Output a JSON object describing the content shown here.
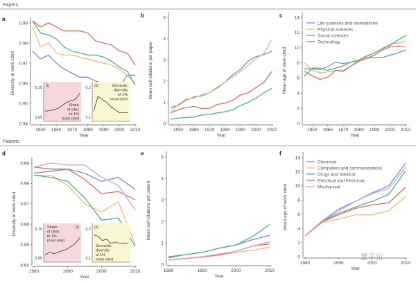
{
  "sections": {
    "papers": "Papers",
    "patents": "Patents"
  },
  "watermark": "量子位",
  "colors": {
    "blue": "#6f8fd8",
    "orange": "#f4b877",
    "green": "#4db486",
    "red": "#df6b5e",
    "purple": "#d39bd8",
    "pink_inset": "#f6d8dc",
    "yellow_inset": "#fbf6cf"
  },
  "chart_data": [
    {
      "id": "a",
      "type": "line",
      "panel_label": "a",
      "xlabel": "Year",
      "ylabel": "Diversity of work cited",
      "xticks": [
        "1950",
        "1960",
        "1970",
        "1980",
        "1990",
        "2000",
        "2010"
      ],
      "yticks": [
        "0.94",
        "0.95",
        "0.96",
        "0.97",
        "0.98",
        "0.99"
      ],
      "xlim": [
        1945,
        2010
      ],
      "ylim": [
        0.94,
        0.99
      ],
      "x": [
        1945,
        1950,
        1955,
        1960,
        1965,
        1970,
        1975,
        1980,
        1985,
        1990,
        1995,
        2000,
        2005,
        2010
      ],
      "series": [
        {
          "name": "Life sciences and biomedicine",
          "color": "#6f8fd8",
          "values": [
            0.976,
            0.972,
            0.974,
            0.97,
            0.967,
            0.965,
            0.963,
            0.963,
            0.961,
            0.96,
            0.958,
            0.958,
            0.964,
            0.964
          ]
        },
        {
          "name": "Physical sciences",
          "color": "#f4b877",
          "values": [
            0.988,
            0.978,
            0.98,
            0.975,
            0.974,
            0.974,
            0.973,
            0.972,
            0.971,
            0.97,
            0.969,
            0.967,
            0.964,
            0.96
          ]
        },
        {
          "name": "Social sciences",
          "color": "#4db486",
          "values": [
            0.991,
            0.985,
            0.984,
            0.982,
            0.978,
            0.976,
            0.975,
            0.974,
            0.974,
            0.973,
            0.971,
            0.968,
            0.966,
            0.959
          ]
        },
        {
          "name": "Technology",
          "color": "#df6b5e",
          "values": [
            0.991,
            0.988,
            0.99,
            0.988,
            0.986,
            0.986,
            0.986,
            0.985,
            0.981,
            0.98,
            0.979,
            0.976,
            0.975,
            0.969
          ]
        }
      ],
      "insets": [
        {
          "tag": "(i)",
          "label": [
            "Share",
            "of cites",
            "to 1%",
            "most cited"
          ],
          "yticks": [
            "0.15",
            "0.05"
          ],
          "ylim": [
            0.05,
            0.15
          ],
          "values": [
            0.07,
            0.072,
            0.075,
            0.08,
            0.09,
            0.1,
            0.105,
            0.11,
            0.13
          ]
        },
        {
          "tag": "(ii)",
          "label": [
            "Semantic",
            "diversity",
            "of 1%",
            "most cited"
          ],
          "yticks": [
            "0.2",
            "0.1"
          ],
          "ylim": [
            0.1,
            0.2
          ],
          "values": [
            0.12,
            0.17,
            0.16,
            0.15,
            0.135,
            0.125,
            0.115,
            0.115,
            0.116
          ]
        }
      ]
    },
    {
      "id": "b",
      "type": "line",
      "panel_label": "b",
      "xlabel": "Year",
      "ylabel": "Mean self-citations per paper",
      "xticks": [
        "1950",
        "1960",
        "1970",
        "1980",
        "1990",
        "2000",
        "2010"
      ],
      "yticks": [
        "0",
        "1",
        "2",
        "3",
        "4",
        "5"
      ],
      "xlim": [
        1945,
        2010
      ],
      "ylim": [
        0,
        5
      ],
      "x": [
        1945,
        1950,
        1955,
        1960,
        1965,
        1970,
        1975,
        1980,
        1985,
        1990,
        1995,
        2000,
        2005,
        2010
      ],
      "series": [
        {
          "name": "Life sciences and biomedicine",
          "color": "#6f8fd8",
          "values": [
            0.75,
            0.85,
            1.1,
            1.25,
            1.3,
            1.45,
            1.7,
            1.95,
            2.3,
            2.55,
            2.95,
            3.15,
            3.25,
            3.4
          ]
        },
        {
          "name": "Physical sciences",
          "color": "#f4b877",
          "values": [
            0.55,
            0.9,
            1.15,
            1.2,
            1.35,
            1.45,
            1.65,
            1.95,
            2.2,
            2.45,
            2.75,
            3.05,
            3.3,
            3.95
          ]
        },
        {
          "name": "Social sciences",
          "color": "#4db486",
          "values": [
            0.2,
            0.25,
            0.28,
            0.3,
            0.4,
            0.42,
            0.5,
            0.55,
            0.65,
            0.85,
            1.0,
            1.2,
            1.45,
            1.65
          ]
        },
        {
          "name": "Technology",
          "color": "#df6b5e",
          "values": [
            0.5,
            0.65,
            0.75,
            0.8,
            0.7,
            0.72,
            0.9,
            0.95,
            1.1,
            1.35,
            1.45,
            1.7,
            1.95,
            2.45
          ]
        }
      ]
    },
    {
      "id": "c",
      "type": "line",
      "panel_label": "c",
      "xlabel": "Year",
      "ylabel": "Mean age of work cited",
      "xticks": [
        "1950",
        "1960",
        "1970",
        "1980",
        "1990",
        "2000",
        "2010"
      ],
      "yticks": [
        "0",
        "2",
        "4",
        "6",
        "8",
        "10",
        "12",
        "14"
      ],
      "xlim": [
        1945,
        2010
      ],
      "ylim": [
        0,
        14
      ],
      "legend": "top-left",
      "x": [
        1945,
        1950,
        1955,
        1960,
        1965,
        1970,
        1975,
        1980,
        1985,
        1990,
        1995,
        2000,
        2005,
        2010
      ],
      "series": [
        {
          "name": "Life sciences and biomedicine",
          "color": "#6f8fd8",
          "values": [
            7.2,
            7.2,
            7.1,
            7.5,
            8.1,
            7.9,
            8.1,
            8.3,
            8.6,
            8.7,
            8.7,
            9.0,
            9.3,
            9.7
          ]
        },
        {
          "name": "Physical sciences",
          "color": "#f4b877",
          "values": [
            8.0,
            7.0,
            6.7,
            6.8,
            7.0,
            7.0,
            7.6,
            8.3,
            8.8,
            9.3,
            9.9,
            10.5,
            10.6,
            10.9
          ]
        },
        {
          "name": "Social sciences",
          "color": "#4db486",
          "values": [
            6.2,
            7.3,
            7.3,
            7.0,
            7.3,
            7.6,
            8.1,
            8.4,
            8.9,
            9.3,
            9.9,
            10.3,
            11.0,
            11.6
          ]
        },
        {
          "name": "Technology",
          "color": "#df6b5e",
          "values": [
            6.9,
            6.3,
            5.8,
            6.1,
            7.0,
            6.9,
            7.6,
            8.2,
            8.6,
            9.0,
            9.7,
            10.1,
            10.2,
            10.1
          ]
        }
      ]
    },
    {
      "id": "d",
      "type": "line",
      "panel_label": "d",
      "xlabel": "Year",
      "ylabel": "Diversity of work cited",
      "xticks": [
        "1980",
        "1990",
        "2000",
        "2010"
      ],
      "yticks": [
        "0.94",
        "0.95",
        "0.96",
        "0.97",
        "0.98",
        "0.99"
      ],
      "xlim": [
        1980,
        2010
      ],
      "ylim": [
        0.94,
        0.99
      ],
      "x": [
        1980,
        1985,
        1990,
        1995,
        2000,
        2005,
        2010
      ],
      "series": [
        {
          "name": "Chemical",
          "color": "#6f8fd8",
          "values": [
            0.985,
            0.986,
            0.987,
            0.985,
            0.981,
            0.983,
            0.977
          ]
        },
        {
          "name": "Computers and communications",
          "color": "#f4b877",
          "values": [
            0.984,
            0.984,
            0.979,
            0.97,
            0.966,
            0.971,
            0.95
          ]
        },
        {
          "name": "Drugs and medical",
          "color": "#4db486",
          "values": [
            0.984,
            0.983,
            0.981,
            0.973,
            0.962,
            0.963,
            0.949
          ]
        },
        {
          "name": "Electrical and electronic",
          "color": "#df6b5e",
          "values": [
            0.988,
            0.987,
            0.987,
            0.982,
            0.975,
            0.976,
            0.972
          ]
        },
        {
          "name": "Mechanical",
          "color": "#d39bd8",
          "values": [
            0.988,
            0.99,
            0.989,
            0.989,
            0.983,
            0.979,
            0.967
          ]
        }
      ],
      "insets": [
        {
          "tag": "(i)",
          "label": [
            "Share",
            "of cites",
            "to 1%",
            "most cited"
          ],
          "yticks": [
            "0.15",
            "0.05"
          ],
          "ylim": [
            0.05,
            0.15
          ],
          "values": [
            0.06,
            0.07,
            0.065,
            0.07,
            0.075,
            0.08,
            0.09,
            0.1,
            0.12
          ]
        },
        {
          "tag": "(ii)",
          "label": [
            "Semantic",
            "diversity",
            "of 1%",
            "most cited"
          ],
          "yticks": [
            "0.2",
            "0.1"
          ],
          "ylim": [
            0.1,
            0.2
          ],
          "values": [
            0.18,
            0.175,
            0.16,
            0.165,
            0.15,
            0.155,
            0.15,
            0.152,
            0.15
          ]
        }
      ]
    },
    {
      "id": "e",
      "type": "line",
      "panel_label": "e",
      "xlabel": "Year",
      "ylabel": "Mean self-citations per patent",
      "xticks": [
        "1980",
        "1990",
        "2000",
        "2010"
      ],
      "yticks": [
        "0",
        "1",
        "2",
        "3",
        "4",
        "5"
      ],
      "xlim": [
        1980,
        2010
      ],
      "ylim": [
        0,
        5
      ],
      "x": [
        1980,
        1985,
        1990,
        1995,
        2000,
        2005,
        2010
      ],
      "series": [
        {
          "name": "Chemical",
          "color": "#6f8fd8",
          "values": [
            0.35,
            0.45,
            0.55,
            0.75,
            0.9,
            1.15,
            1.35
          ]
        },
        {
          "name": "Computers and communications",
          "color": "#f4b877",
          "values": [
            0.2,
            0.27,
            0.33,
            0.42,
            0.55,
            0.65,
            0.8
          ]
        },
        {
          "name": "Drugs and medical",
          "color": "#4db486",
          "values": [
            0.3,
            0.45,
            0.55,
            0.75,
            0.9,
            1.3,
            1.85
          ]
        },
        {
          "name": "Electrical and electronic",
          "color": "#df6b5e",
          "values": [
            0.2,
            0.27,
            0.35,
            0.45,
            0.6,
            0.85,
            0.95
          ]
        },
        {
          "name": "Mechanical",
          "color": "#d39bd8",
          "values": [
            0.2,
            0.27,
            0.35,
            0.48,
            0.6,
            0.85,
            1.05
          ]
        }
      ]
    },
    {
      "id": "f",
      "type": "line",
      "panel_label": "f",
      "xlabel": "Year",
      "ylabel": "Mean age of work cited",
      "xticks": [
        "1980",
        "1990",
        "2000",
        "2010"
      ],
      "yticks": [
        "0",
        "2",
        "4",
        "6",
        "8",
        "10",
        "12",
        "14"
      ],
      "xlim": [
        1980,
        2010
      ],
      "ylim": [
        0,
        14
      ],
      "legend": "top-left",
      "x": [
        1980,
        1985,
        1990,
        1995,
        2000,
        2005,
        2010
      ],
      "series": [
        {
          "name": "Chemical",
          "color": "#6f8fd8",
          "values": [
            2.9,
            5.0,
            6.7,
            7.8,
            9.0,
            10.0,
            13.2
          ]
        },
        {
          "name": "Computers and communications",
          "color": "#f4b877",
          "values": [
            2.9,
            4.8,
            5.3,
            5.9,
            5.9,
            6.5,
            8.5
          ]
        },
        {
          "name": "Drugs and medical",
          "color": "#4db486",
          "values": [
            2.9,
            5.0,
            6.1,
            7.0,
            7.8,
            8.8,
            12.1
          ]
        },
        {
          "name": "Electrical and electronic",
          "color": "#df6b5e",
          "values": [
            2.9,
            4.9,
            5.9,
            6.8,
            7.3,
            7.6,
            9.8
          ]
        },
        {
          "name": "Mechanical",
          "color": "#d39bd8",
          "values": [
            2.9,
            5.0,
            6.4,
            7.8,
            8.9,
            9.6,
            12.6
          ]
        }
      ]
    }
  ]
}
